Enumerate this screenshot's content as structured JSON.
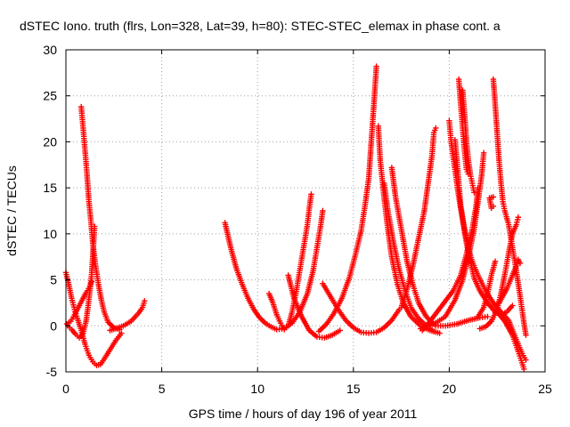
{
  "chart_data": {
    "type": "scatter",
    "title": "dSTEC Iono. truth (flrs, Lon=328, Lat=39, h=80): STEC-STEC_elemax in phase cont. a",
    "xlabel": "GPS time / hours of day 196 of year 2011",
    "ylabel": "dSTEC  / TECUs",
    "xlim": [
      0,
      25
    ],
    "ylim": [
      -5,
      30
    ],
    "xticks": [
      0,
      5,
      10,
      15,
      20,
      25
    ],
    "yticks": [
      -5,
      0,
      5,
      10,
      15,
      20,
      25,
      30
    ],
    "grid": true,
    "marker": "plus",
    "colors": {
      "series": "#ff0000",
      "grid": "#a0a0a0",
      "frame": "#000000"
    },
    "series": [
      {
        "points": [
          [
            0.0,
            5.8
          ],
          [
            0.15,
            4.5
          ],
          [
            0.3,
            3.0
          ],
          [
            0.45,
            1.8
          ],
          [
            0.6,
            0.8
          ],
          [
            0.8,
            -0.5
          ],
          [
            1.0,
            -2.0
          ],
          [
            1.2,
            -3.2
          ],
          [
            1.4,
            -3.9
          ],
          [
            1.6,
            -4.3
          ],
          [
            1.8,
            -4.2
          ],
          [
            2.0,
            -3.6
          ],
          [
            2.3,
            -2.6
          ],
          [
            2.6,
            -1.6
          ],
          [
            2.9,
            -0.8
          ]
        ]
      },
      {
        "points": [
          [
            0.05,
            0.2
          ],
          [
            0.25,
            0.5
          ],
          [
            0.45,
            1.2
          ],
          [
            0.65,
            2.0
          ],
          [
            0.85,
            2.8
          ],
          [
            1.05,
            3.6
          ],
          [
            1.25,
            4.3
          ],
          [
            1.35,
            4.8
          ]
        ]
      },
      {
        "points": [
          [
            0.1,
            0.0
          ],
          [
            0.3,
            -0.4
          ],
          [
            0.5,
            -0.9
          ],
          [
            0.7,
            -1.3
          ],
          [
            0.9,
            -0.8
          ],
          [
            1.05,
            0.5
          ],
          [
            1.15,
            2.0
          ],
          [
            1.25,
            3.8
          ],
          [
            1.35,
            5.8
          ],
          [
            1.4,
            7.5
          ],
          [
            1.45,
            9.2
          ],
          [
            1.5,
            10.8
          ]
        ]
      },
      {
        "points": [
          [
            0.8,
            23.8
          ],
          [
            0.9,
            21.5
          ],
          [
            1.0,
            19.0
          ],
          [
            1.1,
            16.5
          ],
          [
            1.2,
            13.5
          ],
          [
            1.3,
            11.5
          ],
          [
            1.4,
            9.0
          ],
          [
            1.55,
            6.5
          ],
          [
            1.7,
            4.5
          ],
          [
            1.85,
            2.8
          ],
          [
            2.0,
            1.5
          ],
          [
            2.2,
            0.4
          ],
          [
            2.5,
            -0.2
          ],
          [
            2.8,
            -0.4
          ]
        ]
      },
      {
        "points": [
          [
            2.3,
            -0.5
          ],
          [
            2.6,
            -0.3
          ],
          [
            3.0,
            0.0
          ],
          [
            3.4,
            0.5
          ],
          [
            3.8,
            1.4
          ],
          [
            4.0,
            2.0
          ],
          [
            4.1,
            2.7
          ]
        ]
      },
      {
        "points": [
          [
            8.3,
            11.2
          ],
          [
            8.6,
            8.5
          ],
          [
            8.9,
            6.2
          ],
          [
            9.2,
            4.5
          ],
          [
            9.5,
            3.0
          ],
          [
            9.8,
            1.8
          ],
          [
            10.1,
            0.9
          ],
          [
            10.4,
            0.3
          ],
          [
            10.7,
            -0.1
          ],
          [
            11.0,
            -0.4
          ],
          [
            11.4,
            -0.3
          ],
          [
            11.8,
            0.3
          ],
          [
            12.2,
            1.5
          ],
          [
            12.6,
            3.5
          ],
          [
            12.9,
            6.0
          ],
          [
            13.1,
            8.5
          ],
          [
            13.3,
            11.0
          ],
          [
            13.4,
            12.5
          ]
        ]
      },
      {
        "points": [
          [
            10.6,
            3.5
          ],
          [
            10.8,
            2.5
          ],
          [
            11.0,
            1.2
          ],
          [
            11.2,
            0.3
          ],
          [
            11.4,
            -0.4
          ],
          [
            11.6,
            0.0
          ],
          [
            11.8,
            1.5
          ],
          [
            12.0,
            3.5
          ],
          [
            12.2,
            6.0
          ],
          [
            12.4,
            8.5
          ],
          [
            12.6,
            11.0
          ],
          [
            12.7,
            12.8
          ],
          [
            12.8,
            14.3
          ]
        ]
      },
      {
        "points": [
          [
            11.6,
            5.5
          ],
          [
            11.9,
            3.0
          ],
          [
            12.3,
            1.0
          ],
          [
            12.7,
            -0.5
          ],
          [
            13.1,
            -1.2
          ],
          [
            13.5,
            -1.3
          ],
          [
            13.9,
            -1.0
          ],
          [
            14.3,
            -0.5
          ]
        ]
      },
      {
        "points": [
          [
            13.4,
            4.6
          ],
          [
            13.8,
            3.2
          ],
          [
            14.2,
            1.8
          ],
          [
            14.6,
            0.6
          ],
          [
            15.0,
            -0.2
          ],
          [
            15.4,
            -0.7
          ],
          [
            15.8,
            -0.8
          ],
          [
            16.2,
            -0.7
          ],
          [
            16.6,
            -0.2
          ],
          [
            17.0,
            0.6
          ],
          [
            17.4,
            1.8
          ]
        ]
      },
      {
        "points": [
          [
            13.2,
            -0.6
          ],
          [
            13.6,
            0.2
          ],
          [
            14.0,
            1.4
          ],
          [
            14.4,
            3.0
          ],
          [
            14.8,
            5.3
          ],
          [
            15.1,
            7.7
          ],
          [
            15.4,
            10.3
          ],
          [
            15.6,
            13.0
          ],
          [
            15.8,
            16.0
          ],
          [
            15.9,
            19.0
          ],
          [
            16.0,
            22.0
          ],
          [
            16.1,
            25.0
          ],
          [
            16.2,
            28.2
          ]
        ]
      },
      {
        "points": [
          [
            16.3,
            21.7
          ],
          [
            16.4,
            18.0
          ],
          [
            16.6,
            14.0
          ],
          [
            16.8,
            10.5
          ],
          [
            17.0,
            7.5
          ],
          [
            17.3,
            4.5
          ],
          [
            17.6,
            2.5
          ],
          [
            18.0,
            1.0
          ],
          [
            18.5,
            0.0
          ],
          [
            19.0,
            -0.5
          ],
          [
            19.5,
            -0.8
          ]
        ]
      },
      {
        "points": [
          [
            16.6,
            15.5
          ],
          [
            16.8,
            12.5
          ],
          [
            17.1,
            9.0
          ],
          [
            17.4,
            6.0
          ],
          [
            17.7,
            3.8
          ],
          [
            18.0,
            2.0
          ],
          [
            18.4,
            0.8
          ],
          [
            18.8,
            0.0
          ],
          [
            19.2,
            -0.6
          ]
        ]
      },
      {
        "points": [
          [
            17.0,
            17.2
          ],
          [
            17.2,
            14.0
          ],
          [
            17.5,
            10.5
          ],
          [
            17.8,
            7.0
          ],
          [
            18.1,
            4.5
          ],
          [
            18.4,
            2.5
          ],
          [
            18.8,
            1.0
          ],
          [
            19.3,
            0.0
          ],
          [
            19.8,
            0.0
          ],
          [
            20.4,
            0.2
          ],
          [
            21.0,
            0.6
          ],
          [
            21.6,
            0.9
          ],
          [
            22.0,
            1.0
          ]
        ]
      },
      {
        "points": [
          [
            17.5,
            2.0
          ],
          [
            17.8,
            4.0
          ],
          [
            18.1,
            6.5
          ],
          [
            18.4,
            9.5
          ],
          [
            18.7,
            12.5
          ],
          [
            18.9,
            15.5
          ],
          [
            19.1,
            18.5
          ],
          [
            19.2,
            21.0
          ],
          [
            19.3,
            21.5
          ]
        ]
      },
      {
        "points": [
          [
            18.6,
            -0.5
          ],
          [
            19.0,
            0.5
          ],
          [
            19.4,
            1.6
          ],
          [
            19.8,
            2.7
          ],
          [
            20.2,
            3.8
          ],
          [
            20.6,
            5.5
          ],
          [
            20.9,
            7.8
          ],
          [
            21.2,
            10.5
          ],
          [
            21.4,
            13.0
          ],
          [
            21.5,
            15.0
          ]
        ]
      },
      {
        "points": [
          [
            20.0,
            22.3
          ],
          [
            20.1,
            20.0
          ],
          [
            20.3,
            17.0
          ],
          [
            20.5,
            14.0
          ],
          [
            20.7,
            11.5
          ],
          [
            20.9,
            9.0
          ],
          [
            21.1,
            7.0
          ],
          [
            21.3,
            5.2
          ],
          [
            21.6,
            3.8
          ],
          [
            22.0,
            2.5
          ],
          [
            22.4,
            1.5
          ],
          [
            22.7,
            1.2
          ],
          [
            23.0,
            1.5
          ],
          [
            23.3,
            2.2
          ]
        ]
      },
      {
        "points": [
          [
            20.3,
            20.2
          ],
          [
            20.4,
            18.0
          ],
          [
            20.5,
            15.5
          ],
          [
            20.6,
            13.0
          ],
          [
            20.8,
            10.5
          ],
          [
            21.0,
            8.5
          ],
          [
            21.2,
            7.0
          ],
          [
            21.5,
            5.5
          ],
          [
            21.9,
            3.8
          ],
          [
            22.3,
            2.5
          ],
          [
            22.7,
            1.5
          ],
          [
            23.1,
            0.6
          ],
          [
            23.5,
            -1.5
          ],
          [
            23.8,
            -3.0
          ],
          [
            24.0,
            -3.7
          ]
        ]
      },
      {
        "points": [
          [
            20.5,
            26.8
          ],
          [
            20.6,
            24.0
          ],
          [
            20.7,
            21.5
          ],
          [
            20.8,
            19.0
          ],
          [
            20.9,
            17.0
          ],
          [
            21.0,
            16.5
          ]
        ]
      },
      {
        "points": [
          [
            20.7,
            25.6
          ],
          [
            20.8,
            23.0
          ],
          [
            20.9,
            20.0
          ],
          [
            21.0,
            18.0
          ],
          [
            21.1,
            16.5
          ],
          [
            21.2,
            15.5
          ],
          [
            21.3,
            14.5
          ]
        ]
      },
      {
        "points": [
          [
            18.5,
            -0.3
          ],
          [
            19.2,
            0.2
          ],
          [
            19.8,
            1.0
          ],
          [
            20.3,
            2.8
          ],
          [
            20.7,
            5.0
          ],
          [
            21.0,
            7.5
          ],
          [
            21.3,
            10.5
          ],
          [
            21.5,
            13.5
          ],
          [
            21.7,
            16.5
          ],
          [
            21.8,
            18.8
          ]
        ]
      },
      {
        "points": [
          [
            21.6,
            -0.3
          ],
          [
            21.9,
            -0.1
          ],
          [
            22.2,
            0.5
          ],
          [
            22.5,
            1.8
          ],
          [
            22.7,
            3.5
          ],
          [
            22.9,
            5.6
          ],
          [
            23.1,
            7.9
          ],
          [
            23.3,
            10.0
          ],
          [
            23.5,
            11.0
          ],
          [
            23.6,
            11.8
          ]
        ]
      },
      {
        "points": [
          [
            22.3,
            13.0
          ],
          [
            22.2,
            12.8
          ],
          [
            22.1,
            13.9
          ],
          [
            22.3,
            14.0
          ]
        ]
      },
      {
        "points": [
          [
            22.3,
            26.8
          ],
          [
            22.4,
            24.0
          ],
          [
            22.5,
            21.0
          ],
          [
            22.6,
            18.0
          ],
          [
            22.7,
            15.5
          ],
          [
            22.8,
            13.5
          ],
          [
            22.9,
            12.5
          ],
          [
            23.1,
            11.0
          ],
          [
            23.3,
            8.5
          ],
          [
            23.5,
            6.0
          ],
          [
            23.7,
            3.2
          ],
          [
            23.9,
            0.3
          ],
          [
            24.0,
            -1.0
          ]
        ]
      },
      {
        "points": [
          [
            22.5,
            1.5
          ],
          [
            22.9,
            0.5
          ],
          [
            23.3,
            -1.0
          ],
          [
            23.6,
            -2.8
          ],
          [
            23.8,
            -4.0
          ],
          [
            23.9,
            -4.7
          ]
        ]
      },
      {
        "points": [
          [
            22.6,
            2.5
          ],
          [
            23.0,
            4.0
          ],
          [
            23.3,
            5.5
          ],
          [
            23.5,
            6.5
          ],
          [
            23.6,
            7.2
          ],
          [
            23.7,
            6.8
          ]
        ]
      },
      {
        "points": [
          [
            21.5,
            1.0
          ],
          [
            21.8,
            2.0
          ],
          [
            22.0,
            3.5
          ],
          [
            22.2,
            5.5
          ],
          [
            22.4,
            7.0
          ]
        ]
      }
    ]
  }
}
